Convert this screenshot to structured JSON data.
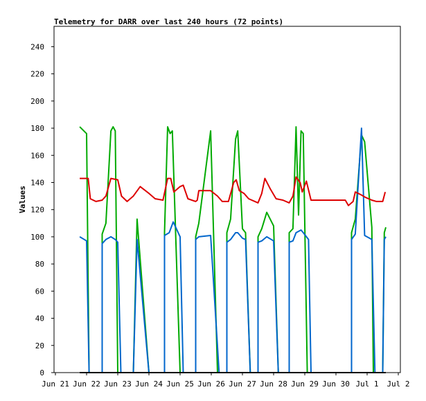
{
  "chart_data": {
    "type": "line",
    "title": "Telemetry for DARR over last 240 hours (72 points)",
    "xlabel": "",
    "ylabel": "Values",
    "ylim": [
      0,
      255
    ],
    "yticks": [
      0,
      20,
      40,
      60,
      80,
      100,
      120,
      140,
      160,
      180,
      200,
      220,
      240
    ],
    "xlim": [
      0,
      11
    ],
    "xticks": [
      {
        "pos": 0,
        "label": "Jun 21"
      },
      {
        "pos": 1,
        "label": "Jun 22"
      },
      {
        "pos": 2,
        "label": "Jun 23"
      },
      {
        "pos": 3,
        "label": "Jun 24"
      },
      {
        "pos": 4,
        "label": "Jun 25"
      },
      {
        "pos": 5,
        "label": "Jun 26"
      },
      {
        "pos": 6,
        "label": "Jun 27"
      },
      {
        "pos": 7,
        "label": "Jun 28"
      },
      {
        "pos": 8,
        "label": "Jun 29"
      },
      {
        "pos": 9,
        "label": "Jun 30"
      },
      {
        "pos": 10,
        "label": "Jul 1"
      },
      {
        "pos": 11,
        "label": "Jul 2"
      }
    ],
    "grid": false,
    "legend": "none",
    "series": [
      {
        "color": "#00aa00",
        "points": [
          [
            0.78,
            181
          ],
          [
            1.0,
            176
          ],
          [
            1.08,
            0
          ],
          [
            1.5,
            0
          ],
          [
            1.5,
            102
          ],
          [
            1.62,
            110
          ],
          [
            1.78,
            178
          ],
          [
            1.85,
            181
          ],
          [
            1.92,
            178
          ],
          [
            2.0,
            0
          ],
          [
            2.5,
            0
          ],
          [
            2.62,
            113
          ],
          [
            3.0,
            0
          ],
          [
            3.5,
            0
          ],
          [
            3.5,
            103
          ],
          [
            3.6,
            181
          ],
          [
            3.68,
            176
          ],
          [
            3.75,
            178
          ],
          [
            4.0,
            0
          ],
          [
            4.5,
            0
          ],
          [
            4.5,
            100
          ],
          [
            4.6,
            110
          ],
          [
            4.98,
            178
          ],
          [
            5.2,
            0
          ],
          [
            5.5,
            0
          ],
          [
            5.5,
            103
          ],
          [
            5.62,
            113
          ],
          [
            5.78,
            172
          ],
          [
            5.85,
            178
          ],
          [
            6.0,
            106
          ],
          [
            6.1,
            103
          ],
          [
            6.25,
            0
          ],
          [
            6.5,
            0
          ],
          [
            6.5,
            100
          ],
          [
            6.62,
            106
          ],
          [
            6.78,
            118
          ],
          [
            7.0,
            108
          ],
          [
            7.15,
            0
          ],
          [
            7.5,
            0
          ],
          [
            7.5,
            103
          ],
          [
            7.62,
            106
          ],
          [
            7.72,
            181
          ],
          [
            7.8,
            116
          ],
          [
            7.88,
            178
          ],
          [
            7.95,
            176
          ],
          [
            8.08,
            0
          ],
          [
            9.5,
            0
          ],
          [
            9.5,
            103
          ],
          [
            9.62,
            113
          ],
          [
            9.82,
            175
          ],
          [
            9.92,
            170
          ],
          [
            10.15,
            107
          ],
          [
            10.2,
            0
          ],
          [
            10.5,
            0
          ],
          [
            10.55,
            103
          ],
          [
            10.6,
            107
          ]
        ]
      },
      {
        "color": "#0066cc",
        "points": [
          [
            0.78,
            100
          ],
          [
            1.0,
            97
          ],
          [
            1.08,
            0
          ],
          [
            1.5,
            0
          ],
          [
            1.5,
            95
          ],
          [
            1.62,
            98
          ],
          [
            1.78,
            100
          ],
          [
            1.92,
            98
          ],
          [
            2.0,
            96
          ],
          [
            2.1,
            0
          ],
          [
            2.5,
            0
          ],
          [
            2.62,
            98
          ],
          [
            3.0,
            0
          ],
          [
            3.5,
            0
          ],
          [
            3.5,
            101
          ],
          [
            3.65,
            103
          ],
          [
            3.78,
            111
          ],
          [
            4.0,
            100
          ],
          [
            4.1,
            0
          ],
          [
            4.5,
            0
          ],
          [
            4.5,
            98
          ],
          [
            4.6,
            100
          ],
          [
            4.98,
            101
          ],
          [
            5.25,
            0
          ],
          [
            5.5,
            0
          ],
          [
            5.5,
            96
          ],
          [
            5.62,
            98
          ],
          [
            5.78,
            103
          ],
          [
            5.85,
            103
          ],
          [
            6.0,
            99
          ],
          [
            6.1,
            98
          ],
          [
            6.25,
            0
          ],
          [
            6.5,
            0
          ],
          [
            6.5,
            96
          ],
          [
            6.62,
            97
          ],
          [
            6.78,
            100
          ],
          [
            7.0,
            97
          ],
          [
            7.15,
            0
          ],
          [
            7.5,
            0
          ],
          [
            7.5,
            96
          ],
          [
            7.62,
            97
          ],
          [
            7.72,
            103
          ],
          [
            7.88,
            105
          ],
          [
            7.95,
            103
          ],
          [
            8.12,
            98
          ],
          [
            8.2,
            0
          ],
          [
            9.5,
            0
          ],
          [
            9.5,
            98
          ],
          [
            9.62,
            102
          ],
          [
            9.82,
            180
          ],
          [
            9.92,
            101
          ],
          [
            10.15,
            98
          ],
          [
            10.25,
            0
          ],
          [
            10.5,
            0
          ],
          [
            10.55,
            98
          ],
          [
            10.6,
            100
          ]
        ]
      },
      {
        "color": "#dd0000",
        "points": [
          [
            0.78,
            143
          ],
          [
            1.05,
            143
          ],
          [
            1.12,
            128
          ],
          [
            1.3,
            126
          ],
          [
            1.5,
            127
          ],
          [
            1.62,
            130
          ],
          [
            1.78,
            143
          ],
          [
            2.0,
            142
          ],
          [
            2.12,
            130
          ],
          [
            2.3,
            126
          ],
          [
            2.5,
            130
          ],
          [
            2.72,
            137
          ],
          [
            3.0,
            132
          ],
          [
            3.2,
            128
          ],
          [
            3.45,
            127
          ],
          [
            3.6,
            143
          ],
          [
            3.7,
            143
          ],
          [
            3.8,
            133
          ],
          [
            4.0,
            137
          ],
          [
            4.1,
            138
          ],
          [
            4.25,
            128
          ],
          [
            4.5,
            126
          ],
          [
            4.55,
            127
          ],
          [
            4.6,
            134
          ],
          [
            4.98,
            134
          ],
          [
            5.2,
            130
          ],
          [
            5.35,
            126
          ],
          [
            5.55,
            126
          ],
          [
            5.72,
            140
          ],
          [
            5.8,
            142
          ],
          [
            5.9,
            134
          ],
          [
            6.05,
            132
          ],
          [
            6.2,
            128
          ],
          [
            6.5,
            125
          ],
          [
            6.62,
            132
          ],
          [
            6.72,
            143
          ],
          [
            6.9,
            135
          ],
          [
            7.08,
            128
          ],
          [
            7.3,
            127
          ],
          [
            7.5,
            125
          ],
          [
            7.62,
            130
          ],
          [
            7.72,
            144
          ],
          [
            7.85,
            140
          ],
          [
            7.92,
            133
          ],
          [
            8.05,
            141
          ],
          [
            8.2,
            127
          ],
          [
            9.3,
            127
          ],
          [
            9.4,
            123
          ],
          [
            9.55,
            126
          ],
          [
            9.62,
            133
          ],
          [
            9.8,
            131
          ],
          [
            9.95,
            129
          ],
          [
            10.15,
            127
          ],
          [
            10.3,
            126
          ],
          [
            10.5,
            126
          ],
          [
            10.58,
            133
          ]
        ]
      },
      {
        "color": "#000000",
        "points": [
          [
            0.78,
            0
          ],
          [
            10.6,
            0
          ]
        ]
      }
    ]
  }
}
